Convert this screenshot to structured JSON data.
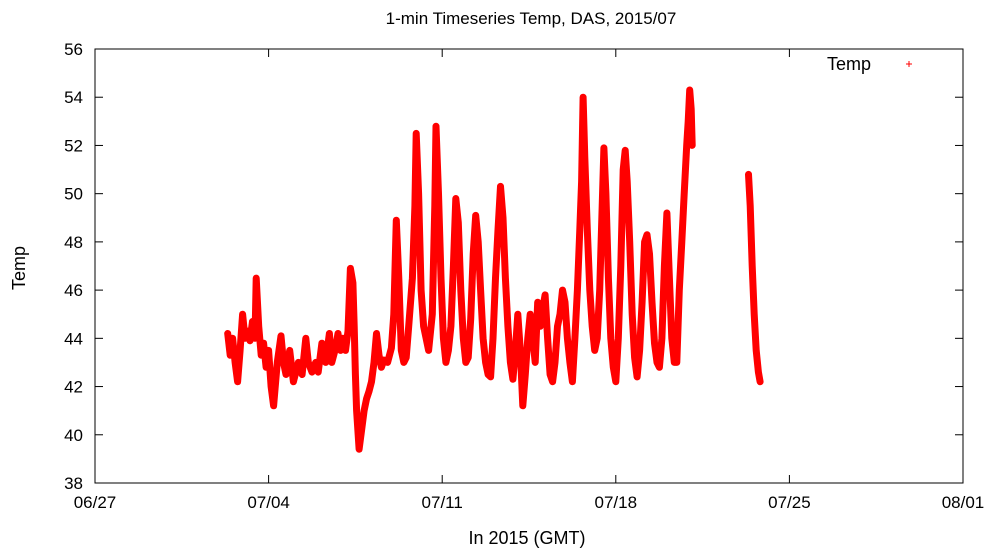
{
  "chart_data": {
    "type": "scatter",
    "title": "1-min Timeseries Temp, DAS, 2015/07",
    "xlabel": "In 2015 (GMT)",
    "ylabel": "Temp",
    "x_ticks": [
      "06/27",
      "07/04",
      "07/11",
      "07/18",
      "07/25",
      "08/01"
    ],
    "y_ticks": [
      "38",
      "40",
      "42",
      "44",
      "46",
      "48",
      "50",
      "52",
      "54",
      "56"
    ],
    "xlim_days_from_jun27": [
      0,
      35
    ],
    "ylim": [
      38,
      56
    ],
    "grid": false,
    "legend_position": "top-right",
    "series": [
      {
        "name": "Temp",
        "color": "#ff0000",
        "marker": "plus",
        "segments": [
          {
            "points": [
              [
                5.35,
                44.2
              ],
              [
                5.45,
                43.3
              ],
              [
                5.55,
                44.0
              ],
              [
                5.65,
                43.0
              ],
              [
                5.75,
                42.2
              ],
              [
                5.85,
                43.5
              ],
              [
                5.95,
                45.0
              ],
              [
                6.05,
                44.0
              ],
              [
                6.15,
                44.3
              ],
              [
                6.25,
                43.9
              ],
              [
                6.35,
                44.7
              ],
              [
                6.45,
                44.0
              ],
              [
                6.5,
                46.5
              ],
              [
                6.6,
                44.5
              ],
              [
                6.7,
                43.3
              ],
              [
                6.8,
                43.8
              ],
              [
                6.9,
                42.8
              ],
              [
                7.0,
                43.5
              ],
              [
                7.1,
                42.0
              ],
              [
                7.2,
                41.2
              ],
              [
                7.35,
                43.0
              ],
              [
                7.5,
                44.1
              ],
              [
                7.6,
                43.0
              ],
              [
                7.7,
                42.5
              ],
              [
                7.85,
                43.5
              ],
              [
                8.0,
                42.2
              ],
              [
                8.2,
                43.0
              ],
              [
                8.35,
                42.5
              ],
              [
                8.5,
                44.0
              ],
              [
                8.6,
                43.0
              ],
              [
                8.75,
                42.6
              ],
              [
                8.9,
                43.0
              ],
              [
                9.0,
                42.6
              ],
              [
                9.15,
                43.8
              ],
              [
                9.3,
                43.0
              ],
              [
                9.45,
                44.2
              ],
              [
                9.55,
                43.0
              ],
              [
                9.7,
                43.6
              ],
              [
                9.8,
                44.2
              ],
              [
                9.9,
                43.5
              ],
              [
                10.0,
                44.0
              ],
              [
                10.1,
                43.5
              ],
              [
                10.2,
                44.3
              ],
              [
                10.3,
                46.9
              ],
              [
                10.4,
                46.3
              ],
              [
                10.45,
                44.5
              ],
              [
                10.5,
                42.5
              ],
              [
                10.55,
                41.0
              ],
              [
                10.65,
                39.4
              ],
              [
                10.75,
                40.2
              ],
              [
                10.85,
                41.0
              ],
              [
                10.95,
                41.5
              ],
              [
                11.05,
                41.8
              ],
              [
                11.15,
                42.2
              ],
              [
                11.25,
                43.0
              ],
              [
                11.35,
                44.2
              ],
              [
                11.45,
                43.3
              ],
              [
                11.55,
                42.8
              ],
              [
                11.65,
                43.1
              ],
              [
                11.8,
                43.0
              ],
              [
                11.95,
                43.6
              ],
              [
                12.05,
                45.0
              ],
              [
                12.15,
                48.9
              ],
              [
                12.25,
                46.5
              ],
              [
                12.35,
                43.5
              ],
              [
                12.45,
                43.0
              ],
              [
                12.55,
                43.2
              ],
              [
                12.65,
                44.5
              ],
              [
                12.8,
                46.5
              ],
              [
                12.9,
                49.5
              ],
              [
                12.95,
                52.5
              ],
              [
                13.05,
                50.0
              ],
              [
                13.15,
                46.0
              ],
              [
                13.25,
                44.5
              ],
              [
                13.35,
                44.0
              ],
              [
                13.45,
                43.5
              ],
              [
                13.6,
                45.0
              ],
              [
                13.7,
                49.5
              ],
              [
                13.75,
                52.8
              ],
              [
                13.85,
                50.0
              ],
              [
                13.95,
                46.5
              ],
              [
                14.05,
                44.0
              ],
              [
                14.15,
                43.0
              ],
              [
                14.25,
                43.5
              ],
              [
                14.35,
                44.5
              ],
              [
                14.45,
                47.0
              ],
              [
                14.55,
                49.8
              ],
              [
                14.65,
                48.8
              ],
              [
                14.75,
                46.0
              ],
              [
                14.85,
                44.0
              ],
              [
                14.95,
                43.0
              ],
              [
                15.05,
                43.2
              ],
              [
                15.15,
                44.8
              ],
              [
                15.25,
                47.5
              ],
              [
                15.35,
                49.1
              ],
              [
                15.45,
                48.0
              ],
              [
                15.55,
                46.0
              ],
              [
                15.65,
                44.0
              ],
              [
                15.75,
                43.0
              ],
              [
                15.85,
                42.5
              ],
              [
                15.95,
                42.4
              ],
              [
                16.05,
                44.0
              ],
              [
                16.15,
                46.5
              ],
              [
                16.25,
                48.5
              ],
              [
                16.35,
                50.3
              ],
              [
                16.45,
                49.0
              ],
              [
                16.55,
                46.5
              ],
              [
                16.65,
                44.5
              ],
              [
                16.75,
                43.0
              ],
              [
                16.85,
                42.3
              ],
              [
                16.95,
                43.5
              ],
              [
                17.05,
                45.0
              ],
              [
                17.15,
                43.5
              ],
              [
                17.25,
                41.2
              ],
              [
                17.35,
                42.5
              ],
              [
                17.45,
                44.0
              ],
              [
                17.55,
                45.0
              ],
              [
                17.65,
                44.0
              ],
              [
                17.75,
                43.0
              ],
              [
                17.85,
                45.5
              ],
              [
                17.95,
                44.5
              ],
              [
                18.05,
                45.2
              ],
              [
                18.15,
                45.8
              ],
              [
                18.25,
                44.0
              ],
              [
                18.35,
                42.5
              ],
              [
                18.45,
                42.2
              ],
              [
                18.55,
                43.0
              ],
              [
                18.65,
                44.5
              ],
              [
                18.75,
                45.0
              ],
              [
                18.85,
                46.0
              ],
              [
                18.95,
                45.5
              ],
              [
                19.05,
                44.0
              ],
              [
                19.15,
                43.0
              ],
              [
                19.25,
                42.2
              ],
              [
                19.35,
                44.0
              ],
              [
                19.45,
                46.0
              ],
              [
                19.55,
                48.5
              ],
              [
                19.62,
                50.5
              ],
              [
                19.68,
                54.0
              ],
              [
                19.75,
                51.5
              ],
              [
                19.85,
                48.5
              ],
              [
                19.95,
                46.0
              ],
              [
                20.05,
                44.5
              ],
              [
                20.15,
                43.5
              ],
              [
                20.25,
                44.0
              ],
              [
                20.35,
                46.0
              ],
              [
                20.45,
                49.5
              ],
              [
                20.52,
                51.9
              ],
              [
                20.6,
                50.0
              ],
              [
                20.7,
                46.5
              ],
              [
                20.8,
                44.0
              ],
              [
                20.9,
                42.8
              ],
              [
                21.0,
                42.2
              ],
              [
                21.1,
                44.0
              ],
              [
                21.2,
                47.0
              ],
              [
                21.3,
                51.0
              ],
              [
                21.38,
                51.8
              ],
              [
                21.46,
                50.5
              ],
              [
                21.56,
                48.0
              ],
              [
                21.66,
                45.0
              ],
              [
                21.76,
                43.2
              ],
              [
                21.86,
                42.4
              ],
              [
                21.96,
                43.5
              ],
              [
                22.06,
                45.5
              ],
              [
                22.16,
                48.0
              ],
              [
                22.26,
                48.3
              ],
              [
                22.36,
                47.5
              ],
              [
                22.46,
                45.5
              ],
              [
                22.56,
                43.8
              ],
              [
                22.66,
                43.0
              ],
              [
                22.76,
                42.8
              ],
              [
                22.86,
                44.0
              ],
              [
                22.96,
                47.0
              ],
              [
                23.06,
                49.2
              ],
              [
                23.16,
                46.5
              ],
              [
                23.26,
                44.0
              ],
              [
                23.36,
                43.0
              ],
              [
                23.46,
                43.0
              ],
              [
                23.56,
                46.0
              ],
              [
                23.66,
                48.0
              ],
              [
                23.76,
                50.0
              ],
              [
                23.86,
                52.0
              ],
              [
                23.92,
                53.0
              ],
              [
                23.98,
                54.3
              ],
              [
                24.04,
                53.5
              ],
              [
                24.08,
                52.0
              ]
            ]
          },
          {
            "points": [
              [
                26.35,
                50.8
              ],
              [
                26.42,
                49.5
              ],
              [
                26.5,
                47.0
              ],
              [
                26.58,
                45.0
              ],
              [
                26.66,
                43.5
              ],
              [
                26.75,
                42.6
              ],
              [
                26.82,
                42.2
              ]
            ]
          }
        ]
      }
    ]
  }
}
